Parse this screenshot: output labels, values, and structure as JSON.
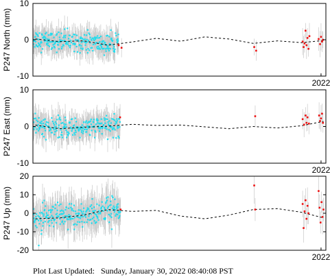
{
  "footer": {
    "label": "Plot Last Updated:",
    "timestamp": "Sunday, January 30, 2022 08:40:08 PST"
  },
  "colors": {
    "data_point": "#22ddee",
    "recent_point": "#ee1111",
    "error_bar": "#c8c8c8",
    "model_line": "#000000"
  },
  "chart_data": [
    {
      "type": "scatter",
      "ylabel": "P247 North (mm)",
      "ylim": [
        -10,
        10
      ],
      "yticks": [
        -10,
        0,
        10
      ],
      "xlim": [
        2016.05,
        2022.1
      ],
      "xticks": [
        2022
      ],
      "xtick_labels": [
        "2022"
      ],
      "grid": false,
      "approx_error_mm": 3,
      "model_trend": [
        {
          "x": 2016.1,
          "y": 0.2
        },
        {
          "x": 2016.6,
          "y": -0.5
        },
        {
          "x": 2017.1,
          "y": -0.3
        },
        {
          "x": 2017.6,
          "y": -1.5
        },
        {
          "x": 2018.1,
          "y": -0.6
        },
        {
          "x": 2018.6,
          "y": 0.4
        },
        {
          "x": 2019.1,
          "y": -0.4
        },
        {
          "x": 2019.6,
          "y": 0.8
        },
        {
          "x": 2020.1,
          "y": 0.2
        },
        {
          "x": 2020.6,
          "y": -1.0
        },
        {
          "x": 2021.1,
          "y": -0.3
        },
        {
          "x": 2021.6,
          "y": -0.8
        },
        {
          "x": 2022.05,
          "y": -0.2
        }
      ],
      "recent_points": [
        {
          "x": 2017.82,
          "y": -1.5
        },
        {
          "x": 2017.88,
          "y": -2.2
        },
        {
          "x": 2020.62,
          "y": -2.0
        },
        {
          "x": 2020.66,
          "y": -3.0
        },
        {
          "x": 2021.62,
          "y": -0.5
        },
        {
          "x": 2021.64,
          "y": -2.0
        },
        {
          "x": 2021.66,
          "y": -1.0
        },
        {
          "x": 2021.68,
          "y": 2.5
        },
        {
          "x": 2021.7,
          "y": -1.5
        },
        {
          "x": 2021.72,
          "y": 0.5
        },
        {
          "x": 2021.74,
          "y": -2.5
        },
        {
          "x": 2021.76,
          "y": 1.0
        },
        {
          "x": 2021.95,
          "y": 0.2
        },
        {
          "x": 2021.98,
          "y": -1.2
        },
        {
          "x": 2022.0,
          "y": 0.8
        },
        {
          "x": 2022.02,
          "y": -0.5
        },
        {
          "x": 2022.04,
          "y": 0.0
        }
      ]
    },
    {
      "type": "scatter",
      "ylabel": "P247 East (mm)",
      "ylim": [
        -10,
        10
      ],
      "yticks": [
        -10,
        0,
        10
      ],
      "xlim": [
        2016.05,
        2022.1
      ],
      "xticks": [
        2022
      ],
      "xtick_labels": [
        "2022"
      ],
      "grid": false,
      "approx_error_mm": 3,
      "model_trend": [
        {
          "x": 2016.1,
          "y": 0.4
        },
        {
          "x": 2016.6,
          "y": -0.6
        },
        {
          "x": 2017.1,
          "y": -0.2
        },
        {
          "x": 2017.6,
          "y": 0.1
        },
        {
          "x": 2018.1,
          "y": 0.6
        },
        {
          "x": 2018.6,
          "y": 0.3
        },
        {
          "x": 2019.1,
          "y": 0.4
        },
        {
          "x": 2019.6,
          "y": -0.1
        },
        {
          "x": 2020.1,
          "y": -0.6
        },
        {
          "x": 2020.6,
          "y": 0.0
        },
        {
          "x": 2021.1,
          "y": -0.4
        },
        {
          "x": 2021.6,
          "y": 0.2
        },
        {
          "x": 2022.05,
          "y": 1.4
        }
      ],
      "recent_points": [
        {
          "x": 2017.85,
          "y": 2.5
        },
        {
          "x": 2020.64,
          "y": 2.8
        },
        {
          "x": 2021.62,
          "y": 2.0
        },
        {
          "x": 2021.65,
          "y": 0.5
        },
        {
          "x": 2021.68,
          "y": 3.0
        },
        {
          "x": 2021.7,
          "y": 1.0
        },
        {
          "x": 2021.72,
          "y": 2.5
        },
        {
          "x": 2021.75,
          "y": 0.8
        },
        {
          "x": 2021.96,
          "y": 3.0
        },
        {
          "x": 2021.98,
          "y": 1.5
        },
        {
          "x": 2022.0,
          "y": 2.2
        },
        {
          "x": 2022.02,
          "y": 3.5
        },
        {
          "x": 2022.04,
          "y": 1.0
        }
      ]
    },
    {
      "type": "scatter",
      "ylabel": "P247 Up (mm)",
      "ylim": [
        -20,
        20
      ],
      "yticks": [
        -20,
        -10,
        0,
        10,
        20
      ],
      "xlim": [
        2016.05,
        2022.1
      ],
      "xticks": [
        2022
      ],
      "xtick_labels": [
        "2022"
      ],
      "grid": false,
      "approx_error_mm": 8,
      "model_trend": [
        {
          "x": 2016.1,
          "y": -3.0
        },
        {
          "x": 2016.6,
          "y": -2.5
        },
        {
          "x": 2017.1,
          "y": -1.0
        },
        {
          "x": 2017.6,
          "y": 2.0
        },
        {
          "x": 2018.1,
          "y": 1.0
        },
        {
          "x": 2018.6,
          "y": 1.5
        },
        {
          "x": 2019.1,
          "y": -1.5
        },
        {
          "x": 2019.6,
          "y": -3.0
        },
        {
          "x": 2020.1,
          "y": -1.0
        },
        {
          "x": 2020.6,
          "y": 2.0
        },
        {
          "x": 2021.1,
          "y": 2.5
        },
        {
          "x": 2021.6,
          "y": 0.5
        },
        {
          "x": 2022.05,
          "y": -2.5
        }
      ],
      "recent_points": [
        {
          "x": 2017.86,
          "y": 2.0
        },
        {
          "x": 2020.62,
          "y": 15.0
        },
        {
          "x": 2020.64,
          "y": 2.0
        },
        {
          "x": 2021.62,
          "y": 5.0
        },
        {
          "x": 2021.64,
          "y": -8.0
        },
        {
          "x": 2021.66,
          "y": 1.0
        },
        {
          "x": 2021.68,
          "y": 7.0
        },
        {
          "x": 2021.7,
          "y": -3.0
        },
        {
          "x": 2021.72,
          "y": 4.0
        },
        {
          "x": 2021.74,
          "y": 0.0
        },
        {
          "x": 2021.95,
          "y": 12.0
        },
        {
          "x": 2021.97,
          "y": 3.0
        },
        {
          "x": 2021.99,
          "y": -5.0
        },
        {
          "x": 2022.01,
          "y": 6.0
        },
        {
          "x": 2022.03,
          "y": -2.0
        },
        {
          "x": 2022.05,
          "y": 2.0
        }
      ]
    }
  ]
}
